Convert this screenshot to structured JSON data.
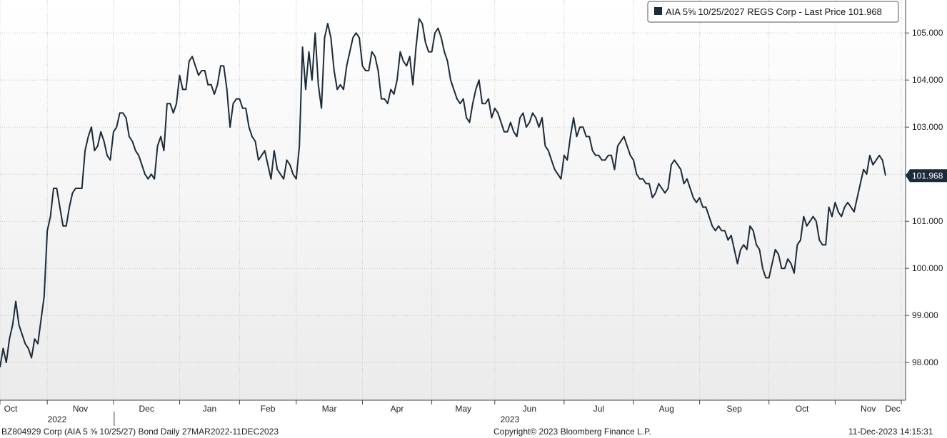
{
  "chart_data": {
    "type": "line",
    "title": "",
    "legend": {
      "label": "AIA 5⅝ 10/25/2027 REGS Corp - Last Price 101.968",
      "placement": "top-right"
    },
    "series": [
      {
        "name": "AIA 5⅝ 10/25/2027 REGS Corp - Last Price",
        "color": "#1c2b3a",
        "values": [
          97.9,
          98.3,
          98.0,
          98.5,
          98.8,
          99.3,
          98.8,
          98.6,
          98.4,
          98.3,
          98.1,
          98.5,
          98.4,
          98.9,
          99.4,
          100.8,
          101.1,
          101.7,
          101.7,
          101.3,
          100.9,
          100.9,
          101.3,
          101.6,
          101.7,
          101.7,
          101.7,
          102.5,
          102.8,
          103.0,
          102.5,
          102.6,
          102.9,
          102.7,
          102.4,
          102.3,
          102.9,
          103.0,
          103.3,
          103.3,
          103.2,
          102.8,
          102.7,
          102.5,
          102.4,
          102.2,
          102.0,
          101.9,
          102.0,
          101.9,
          102.6,
          102.8,
          102.5,
          103.5,
          103.5,
          103.3,
          103.5,
          104.1,
          103.8,
          103.8,
          104.4,
          104.5,
          104.3,
          104.1,
          104.2,
          104.2,
          103.9,
          103.9,
          103.7,
          103.9,
          104.3,
          104.3,
          103.8,
          103.0,
          103.5,
          103.6,
          103.6,
          103.4,
          103.4,
          103.0,
          102.8,
          102.7,
          102.3,
          102.4,
          102.5,
          102.2,
          101.9,
          102.5,
          102.1,
          102.0,
          101.9,
          102.3,
          102.2,
          102.0,
          101.9,
          102.6,
          104.7,
          103.8,
          104.6,
          104.0,
          105.0,
          103.9,
          103.4,
          104.9,
          105.2,
          104.9,
          104.2,
          103.8,
          103.9,
          103.8,
          104.3,
          104.6,
          104.9,
          105.0,
          104.9,
          104.3,
          104.2,
          104.2,
          104.6,
          104.5,
          104.2,
          103.6,
          103.6,
          103.5,
          103.8,
          103.7,
          104.0,
          104.6,
          104.4,
          104.3,
          104.5,
          103.9,
          104.7,
          105.3,
          105.2,
          104.8,
          104.6,
          104.6,
          105.0,
          105.1,
          104.9,
          104.6,
          104.4,
          104.0,
          103.8,
          103.6,
          103.5,
          103.6,
          103.2,
          103.1,
          103.5,
          103.8,
          104.0,
          103.5,
          103.5,
          103.6,
          103.2,
          103.4,
          103.3,
          103.1,
          102.9,
          102.9,
          103.1,
          102.9,
          102.8,
          103.2,
          103.3,
          103.0,
          103.1,
          103.3,
          103.2,
          103.0,
          103.2,
          102.6,
          102.5,
          102.3,
          102.1,
          102.0,
          101.9,
          102.4,
          102.3,
          102.8,
          103.2,
          102.8,
          103.0,
          103.0,
          102.8,
          102.8,
          102.5,
          102.4,
          102.4,
          102.3,
          102.3,
          102.4,
          102.4,
          102.1,
          102.6,
          102.7,
          102.8,
          102.6,
          102.4,
          102.3,
          102.0,
          101.9,
          101.9,
          101.8,
          101.8,
          101.5,
          101.6,
          101.8,
          101.7,
          101.6,
          101.7,
          102.2,
          102.3,
          102.2,
          102.1,
          101.8,
          101.9,
          101.7,
          101.5,
          101.4,
          101.5,
          101.3,
          101.3,
          101.1,
          100.9,
          100.8,
          100.9,
          100.8,
          100.8,
          100.6,
          100.7,
          100.4,
          100.1,
          100.4,
          100.5,
          100.4,
          100.9,
          100.8,
          100.5,
          100.4,
          100.0,
          99.8,
          99.8,
          100.1,
          100.4,
          100.3,
          100.0,
          100.0,
          100.2,
          100.1,
          99.9,
          100.5,
          100.6,
          101.1,
          100.9,
          101.0,
          101.1,
          101.0,
          100.6,
          100.5,
          100.5,
          101.3,
          101.1,
          101.4,
          101.2,
          101.1,
          101.3,
          101.4,
          101.3,
          101.2,
          101.5,
          101.8,
          102.1,
          102.0,
          102.4,
          102.2,
          102.3,
          102.4,
          102.3,
          101.968
        ]
      }
    ],
    "last_value_label": "101.968",
    "y_axis": {
      "position": "right",
      "ylim": [
        97.2,
        105.7
      ],
      "ticks": [
        98.0,
        99.0,
        100.0,
        101.0,
        102.0,
        103.0,
        104.0,
        105.0
      ],
      "tick_labels": [
        "98.000",
        "99.000",
        "100.000",
        "101.000",
        "102.000",
        "103.000",
        "104.000",
        "105.000"
      ]
    },
    "x_axis": {
      "months": [
        "Oct",
        "Nov",
        "Dec",
        "Jan",
        "Feb",
        "Mar",
        "Apr",
        "May",
        "Jun",
        "Jul",
        "Aug",
        "Sep",
        "Oct",
        "Nov",
        "Dec"
      ],
      "month_tick_index": [
        0,
        15,
        36,
        57,
        76,
        94,
        115,
        137,
        157,
        179,
        201,
        222,
        244,
        265,
        286
      ],
      "years": [
        "2022",
        "2023"
      ],
      "year_divider_after_month": 2
    },
    "grid": true
  },
  "footer": {
    "left": "BZ804929 Corp (AIA 5 ⅝ 10/25/27) Bond  Daily 27MAR2022-11DEC2023",
    "center": "Copyright© 2023 Bloomberg Finance L.P.",
    "right": "11-Dec-2023 14:15:31"
  }
}
